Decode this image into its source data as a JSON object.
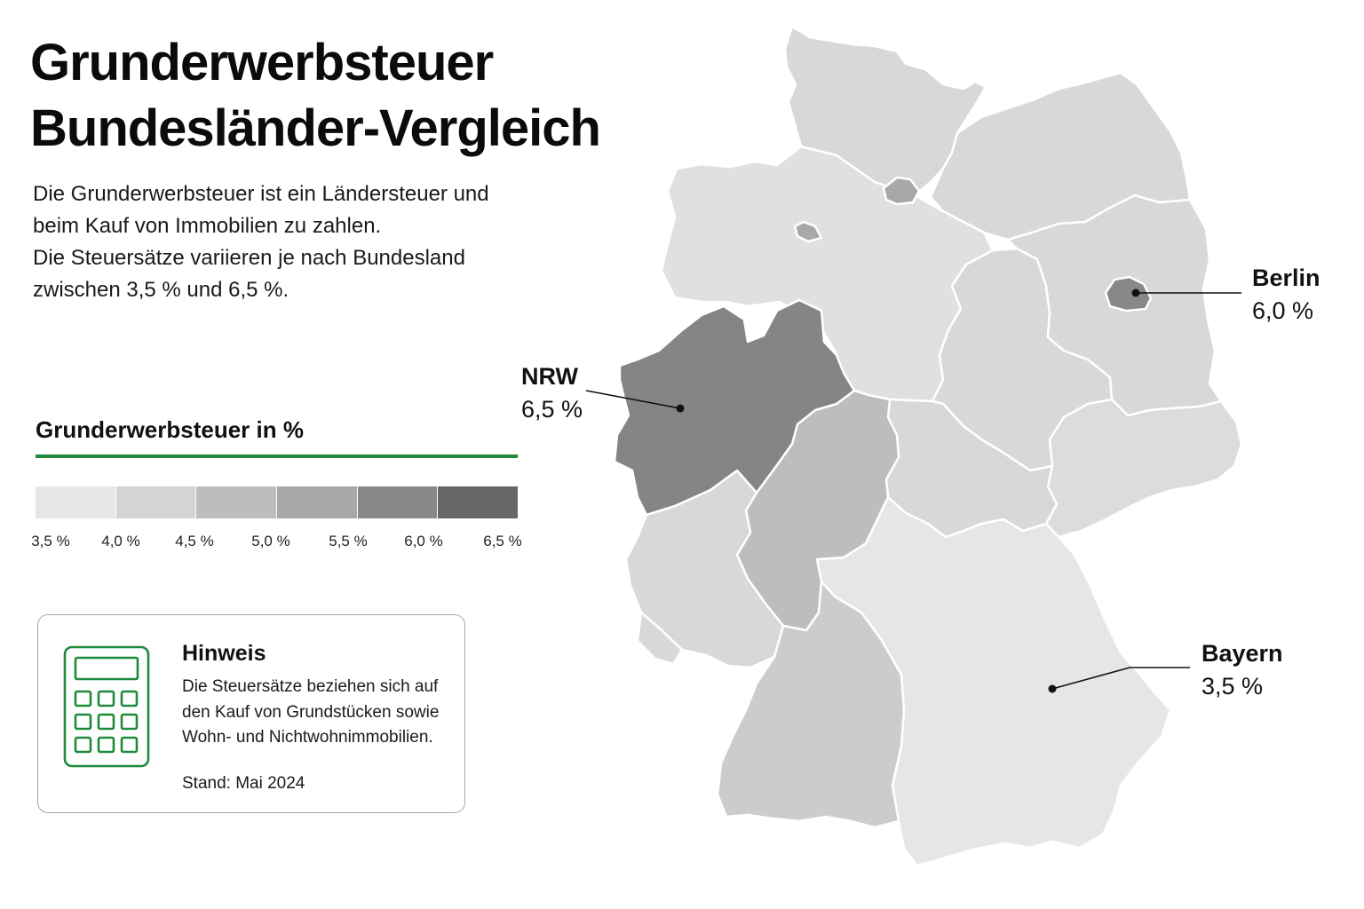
{
  "title": {
    "line1": "Grunderwerbsteuer",
    "line2": "Bundesländer-Vergleich"
  },
  "intro": {
    "line1": "Die Grunderwerbsteuer ist ein Ländersteuer und",
    "line2": "beim Kauf von Immobilien zu zahlen.",
    "line3": "Die Steuersätze variieren je nach Bundesland",
    "line4": "zwischen 3,5 % und 6,5 %."
  },
  "legend": {
    "title": "Grunderwerbsteuer in %",
    "accent_color": "#1e8a3a",
    "swatch_colors": [
      "#e6e6e6",
      "#d4d4d4",
      "#bdbdbd",
      "#a8a8a8",
      "#888888",
      "#666666"
    ],
    "ticks": [
      "3,5 %",
      "4,0 %",
      "4,5 %",
      "5,0 %",
      "5,5 %",
      "6,0 %",
      "6,5 %"
    ]
  },
  "note": {
    "icon": "calculator-icon",
    "icon_color": "#1e8a3a",
    "title": "Hinweis",
    "line1": "Die Steuersätze beziehen sich auf",
    "line2": "den Kauf von Grundstücken sowie",
    "line3": "Wohn- und Nichtwohnimmobilien.",
    "date": "Stand: Mai 2024"
  },
  "map": {
    "state_colors": {
      "schleswig_holstein": "#d8d8d8",
      "hamburg": "#a8a8a8",
      "mecklenburg_vorpommern": "#d8d8d8",
      "niedersachsen": "#e0e0e0",
      "bremen": "#a8a8a8",
      "brandenburg": "#d8d8d8",
      "berlin": "#888888",
      "sachsen_anhalt": "#d8d8d8",
      "nordrhein_westfalen": "#858585",
      "hessen": "#bdbdbd",
      "thueringen": "#d8d8d8",
      "sachsen": "#dcdcdc",
      "rheinland_pfalz": "#d8d8d8",
      "saarland": "#d8d8d8",
      "baden_wuerttemberg": "#cccccc",
      "bayern": "#e6e6e6"
    },
    "callouts": {
      "nrw": {
        "name": "NRW",
        "value": "6,5 %"
      },
      "berlin": {
        "name": "Berlin",
        "value": "6,0 %"
      },
      "bayern": {
        "name": "Bayern",
        "value": "3,5 %"
      }
    }
  }
}
